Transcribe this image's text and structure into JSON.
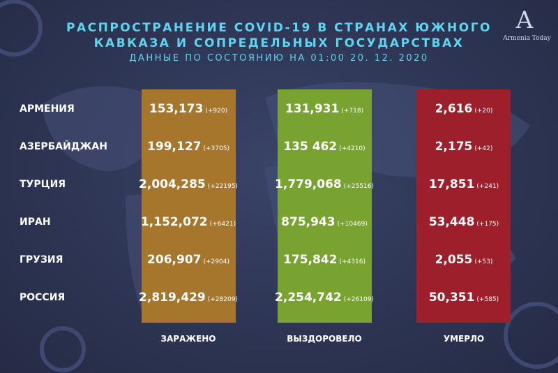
{
  "header": {
    "title_lines": [
      "РАСПРОСТРАНЕНИЕ COVID-19 В СТРАНАХ ЮЖНОГО",
      "КАВКАЗА И СОПРЕДЕЛЬНЫХ ГОСУДАРСТВАХ"
    ],
    "subtitle": "ДАННЫЕ ПО СОСТОЯНИЮ НА 01:00   20. 12. 2020",
    "logo": "Armenia Today"
  },
  "table": {
    "columns": [
      "ЗАРАЖЕНО",
      "ВЫЗДОРОВЕЛО",
      "УМЕРЛО"
    ],
    "rows": [
      {
        "country": "АРМЕНИЯ",
        "cells": [
          [
            "153,173",
            "(+920)"
          ],
          [
            "131,931",
            "(+718)"
          ],
          [
            "2,616",
            "(+20)"
          ]
        ]
      },
      {
        "country": "АЗЕРБАЙДЖАН",
        "cells": [
          [
            "199,127",
            "(+3705)"
          ],
          [
            "135 462",
            "(+4210)"
          ],
          [
            "2,175",
            "(+42)"
          ]
        ]
      },
      {
        "country": "ТУРЦИЯ",
        "cells": [
          [
            "2,004,285",
            "(+22195)"
          ],
          [
            "1,779,068",
            "(+25516)"
          ],
          [
            "17,851",
            "(+241)"
          ]
        ]
      },
      {
        "country": "ИРАН",
        "cells": [
          [
            "1,152,072",
            "(+6421)"
          ],
          [
            "875,943",
            "(+10469)"
          ],
          [
            "53,448",
            "(+175)"
          ]
        ]
      },
      {
        "country": "ГРУЗИЯ",
        "cells": [
          [
            "206,907",
            "(+2904)"
          ],
          [
            "175,842",
            "(+4316)"
          ],
          [
            "2,055",
            "(+53)"
          ]
        ]
      },
      {
        "country": "РОССИЯ",
        "cells": [
          [
            "2,819,429",
            "(+28209)"
          ],
          [
            "2,254,742",
            "(+26109)"
          ],
          [
            "50,351",
            "(+585)"
          ]
        ]
      }
    ]
  }
}
